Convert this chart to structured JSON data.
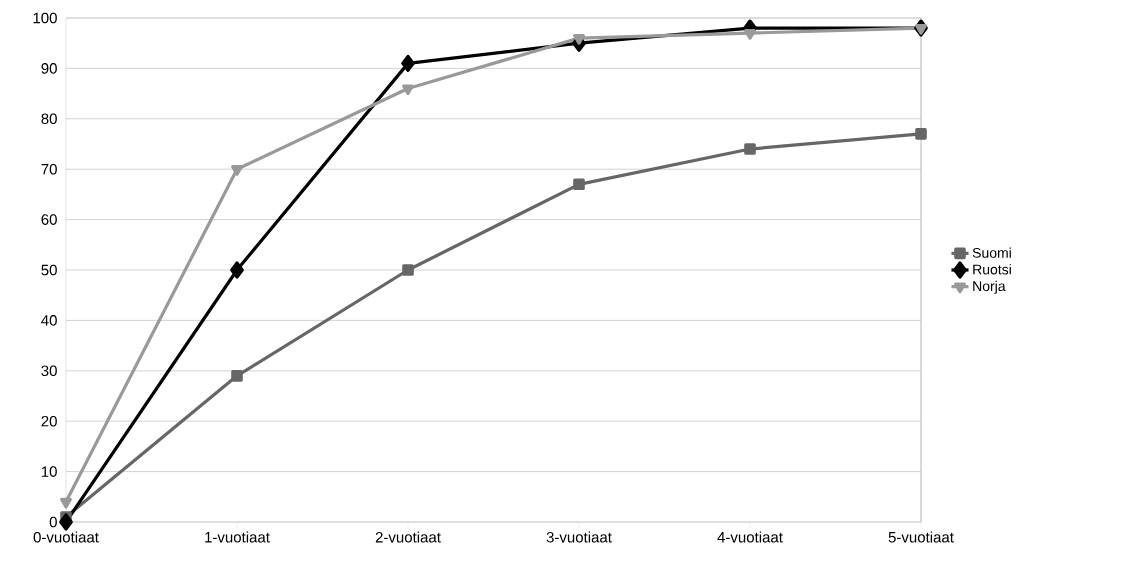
{
  "chart_data": {
    "type": "line",
    "categories": [
      "0-vuotiaat",
      "1-vuotiaat",
      "2-vuotiaat",
      "3-vuotiaat",
      "4-vuotiaat",
      "5-vuotiaat"
    ],
    "series": [
      {
        "name": "Suomi",
        "color": "#666666",
        "marker": "square",
        "values": [
          1,
          29,
          50,
          67,
          74,
          77
        ]
      },
      {
        "name": "Ruotsi",
        "color": "#000000",
        "marker": "diamond",
        "values": [
          0,
          50,
          91,
          95,
          98,
          98
        ]
      },
      {
        "name": "Norja",
        "color": "#999999",
        "marker": "triangle",
        "values": [
          4,
          70,
          86,
          96,
          97,
          98
        ]
      }
    ],
    "ylim": [
      0,
      100
    ],
    "yticks": [
      0,
      10,
      20,
      30,
      40,
      50,
      60,
      70,
      80,
      90,
      100
    ],
    "grid": "y",
    "legend": "right",
    "line_style": "solid"
  }
}
